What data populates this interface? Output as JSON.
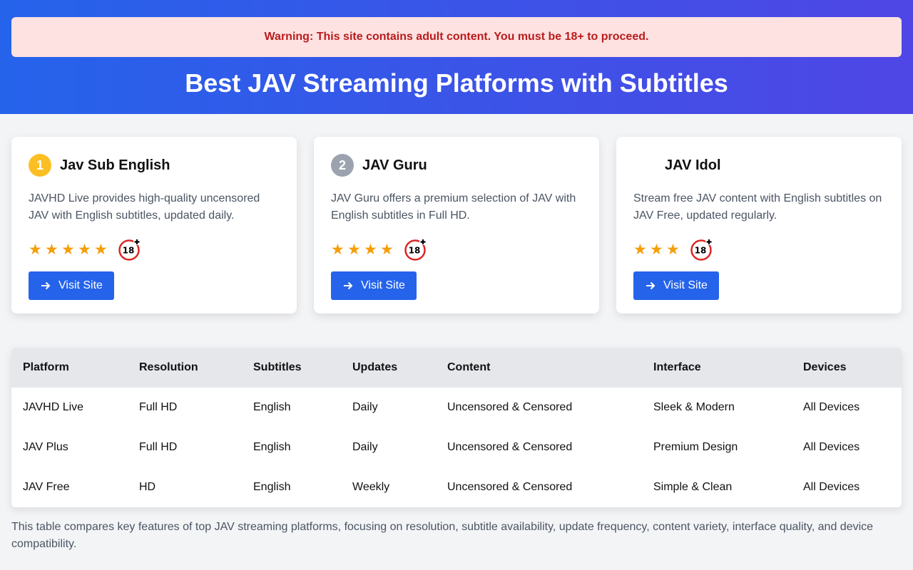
{
  "warning": "Warning: This site contains adult content. You must be 18+ to proceed.",
  "title": "Best JAV Streaming Platforms with Subtitles",
  "cards": [
    {
      "rank": "1",
      "rank_color": "#fbbf24",
      "name": "Jav Sub English",
      "description": "JAVHD Live provides high-quality uncensored JAV with English subtitles, updated daily.",
      "stars": 5,
      "age_label": "18+",
      "button": "Visit Site"
    },
    {
      "rank": "2",
      "rank_color": "#9ca3af",
      "name": "JAV Guru",
      "description": "JAV Guru offers a premium selection of JAV with English subtitles in Full HD.",
      "stars": 4,
      "age_label": "18+",
      "button": "Visit Site"
    },
    {
      "rank": "",
      "rank_color": "transparent",
      "name": "JAV Idol",
      "description": "Stream free JAV content with English subtitles on JAV Free, updated regularly.",
      "stars": 3,
      "age_label": "18+",
      "button": "Visit Site"
    }
  ],
  "table": {
    "headers": [
      "Platform",
      "Resolution",
      "Subtitles",
      "Updates",
      "Content",
      "Interface",
      "Devices"
    ],
    "rows": [
      [
        "JAVHD Live",
        "Full HD",
        "English",
        "Daily",
        "Uncensored & Censored",
        "Sleek & Modern",
        "All Devices"
      ],
      [
        "JAV Plus",
        "Full HD",
        "English",
        "Daily",
        "Uncensored & Censored",
        "Premium Design",
        "All Devices"
      ],
      [
        "JAV Free",
        "HD",
        "English",
        "Weekly",
        "Uncensored & Censored",
        "Simple & Clean",
        "All Devices"
      ]
    ]
  },
  "note": "This table compares key features of top JAV streaming platforms, focusing on resolution, subtitle availability, update frequency, content variety, interface quality, and device compatibility."
}
